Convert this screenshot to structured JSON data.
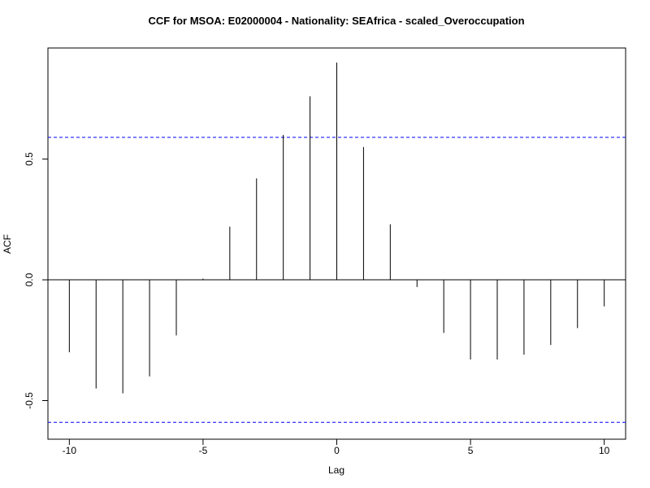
{
  "chart_data": {
    "type": "bar",
    "title": "CCF for MSOA: E02000004 - Nationality: SEAfrica - scaled_Overoccupation",
    "xlabel": "Lag",
    "ylabel": "ACF",
    "xlim": [
      -10.8,
      10.8
    ],
    "ylim": [
      -0.66,
      0.96
    ],
    "x_ticks": [
      -10,
      -5,
      0,
      5,
      10
    ],
    "y_ticks": [
      -0.5,
      0.0,
      0.5
    ],
    "x_tick_labels": [
      "-10",
      "-5",
      "0",
      "5",
      "10"
    ],
    "y_tick_labels": [
      "-0.5",
      "0.0",
      "0.5"
    ],
    "lags": [
      -10,
      -9,
      -8,
      -7,
      -6,
      -5,
      -4,
      -3,
      -2,
      -1,
      0,
      1,
      2,
      3,
      4,
      5,
      6,
      7,
      8,
      9,
      10
    ],
    "values": [
      -0.3,
      -0.45,
      -0.47,
      -0.4,
      -0.23,
      0.005,
      0.22,
      0.42,
      0.6,
      0.76,
      0.9,
      0.55,
      0.23,
      -0.03,
      -0.22,
      -0.33,
      -0.33,
      -0.31,
      -0.27,
      -0.2,
      -0.11
    ],
    "confidence_bound": 0.59,
    "colors": {
      "spike": "#000000",
      "confidence": "#0000ff",
      "zero_line": "#000000"
    }
  }
}
